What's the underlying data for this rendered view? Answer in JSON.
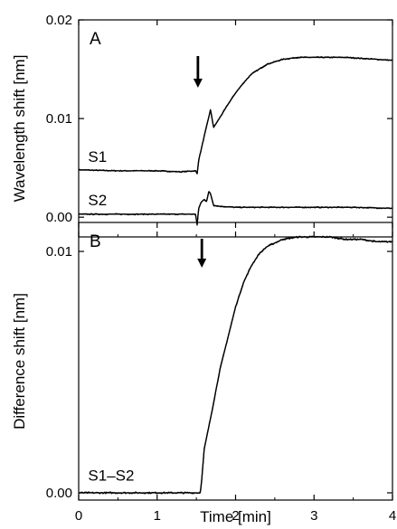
{
  "chart_data": [
    {
      "type": "line",
      "panel_label": "A",
      "ylabel": "Wavelength shift [nm]",
      "xlim": [
        0,
        4
      ],
      "ylim": [
        -0.002,
        0.02
      ],
      "yticks": [
        {
          "value": 0.0,
          "label": "0.00"
        },
        {
          "value": 0.01,
          "label": "0.01"
        },
        {
          "value": 0.02,
          "label": "0.02"
        }
      ],
      "arrow_at_x": 1.52,
      "series": [
        {
          "name": "S1",
          "label_position": [
            0.12,
            0.0056
          ],
          "points": [
            [
              0,
              0.0048
            ],
            [
              0.5,
              0.0047
            ],
            [
              1.0,
              0.0047
            ],
            [
              1.3,
              0.0046
            ],
            [
              1.49,
              0.0047
            ],
            [
              1.51,
              0.0044
            ],
            [
              1.53,
              0.0058
            ],
            [
              1.56,
              0.0068
            ],
            [
              1.6,
              0.0082
            ],
            [
              1.63,
              0.0092
            ],
            [
              1.66,
              0.0102
            ],
            [
              1.68,
              0.0109
            ],
            [
              1.72,
              0.0091
            ],
            [
              1.8,
              0.0101
            ],
            [
              1.9,
              0.0114
            ],
            [
              2.0,
              0.0126
            ],
            [
              2.1,
              0.0136
            ],
            [
              2.2,
              0.0145
            ],
            [
              2.4,
              0.0155
            ],
            [
              2.6,
              0.016
            ],
            [
              2.8,
              0.0162
            ],
            [
              3.0,
              0.0162
            ],
            [
              3.2,
              0.0162
            ],
            [
              3.4,
              0.0162
            ],
            [
              3.6,
              0.0161
            ],
            [
              3.8,
              0.016
            ],
            [
              4.0,
              0.0159
            ]
          ]
        },
        {
          "name": "S2",
          "label_position": [
            0.12,
            0.0012
          ],
          "points": [
            [
              0,
              0.0003
            ],
            [
              0.5,
              0.0003
            ],
            [
              1.0,
              0.0003
            ],
            [
              1.3,
              0.0003
            ],
            [
              1.49,
              0.0003
            ],
            [
              1.51,
              -0.0008
            ],
            [
              1.53,
              0.0009
            ],
            [
              1.56,
              0.0015
            ],
            [
              1.6,
              0.0018
            ],
            [
              1.63,
              0.0016
            ],
            [
              1.66,
              0.0026
            ],
            [
              1.68,
              0.0024
            ],
            [
              1.72,
              0.0012
            ],
            [
              1.8,
              0.0011
            ],
            [
              2.0,
              0.001
            ],
            [
              2.5,
              0.001
            ],
            [
              3.0,
              0.001
            ],
            [
              3.5,
              0.001
            ],
            [
              4.0,
              0.0009
            ]
          ]
        }
      ]
    },
    {
      "type": "line",
      "panel_label": "B",
      "ylabel": "Difference shift [nm]",
      "xlabel": "Time [min]",
      "xlim": [
        0,
        4
      ],
      "ylim": [
        -0.0003,
        0.0112
      ],
      "xticks": [
        {
          "value": 0,
          "label": "0"
        },
        {
          "value": 1,
          "label": "1"
        },
        {
          "value": 2,
          "label": "2"
        },
        {
          "value": 3,
          "label": "3"
        },
        {
          "value": 4,
          "label": "4"
        }
      ],
      "yticks": [
        {
          "value": 0.0,
          "label": "0.00"
        },
        {
          "value": 0.01,
          "label": "0.01"
        }
      ],
      "arrow_at_x": 1.57,
      "series": [
        {
          "name": "S1–S2",
          "label_position": [
            0.12,
            0.0005
          ],
          "points": [
            [
              0,
              0.0
            ],
            [
              0.5,
              0.0
            ],
            [
              1.0,
              0.0
            ],
            [
              1.3,
              0.0
            ],
            [
              1.55,
              0.0
            ],
            [
              1.57,
              0.0006
            ],
            [
              1.6,
              0.0018
            ],
            [
              1.65,
              0.0026
            ],
            [
              1.7,
              0.0034
            ],
            [
              1.8,
              0.0051
            ],
            [
              1.9,
              0.0064
            ],
            [
              2.0,
              0.0077
            ],
            [
              2.1,
              0.0087
            ],
            [
              2.2,
              0.0094
            ],
            [
              2.3,
              0.0099
            ],
            [
              2.4,
              0.0102
            ],
            [
              2.6,
              0.0105
            ],
            [
              2.8,
              0.0106
            ],
            [
              3.0,
              0.0106
            ],
            [
              3.2,
              0.0106
            ],
            [
              3.4,
              0.0105
            ],
            [
              3.6,
              0.0105
            ],
            [
              3.8,
              0.0104
            ],
            [
              4.0,
              0.0104
            ]
          ]
        }
      ]
    }
  ]
}
